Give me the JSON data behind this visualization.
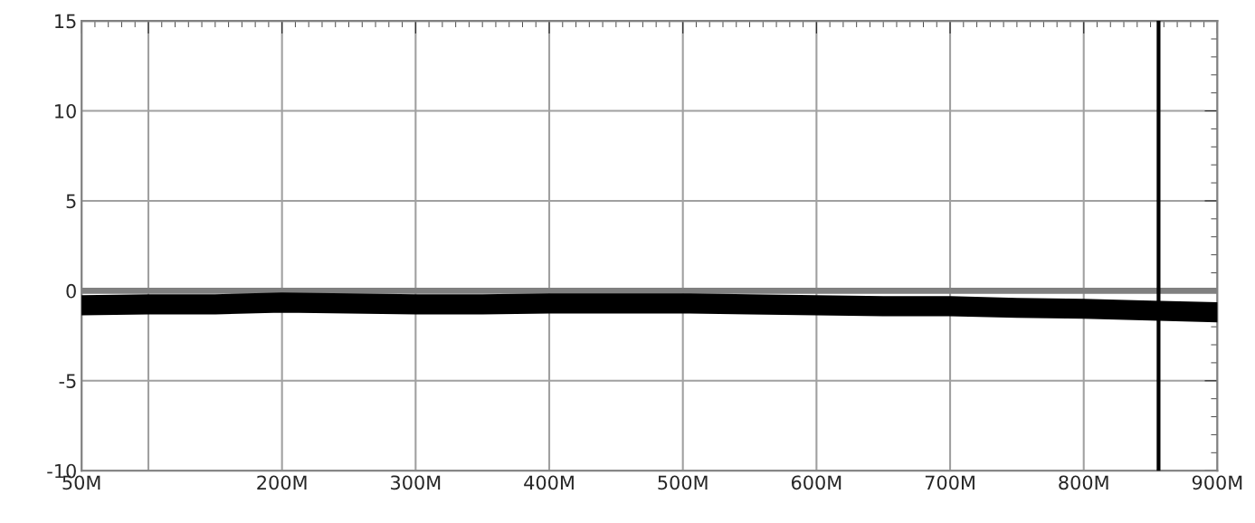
{
  "chart_data": {
    "type": "line",
    "x": [
      50,
      100,
      150,
      200,
      250,
      300,
      350,
      400,
      450,
      500,
      550,
      600,
      650,
      700,
      750,
      800,
      850,
      900
    ],
    "series": [
      {
        "color": "#000000",
        "values": [
          -0.8,
          -0.75,
          -0.75,
          -0.65,
          -0.7,
          -0.75,
          -0.75,
          -0.7,
          -0.7,
          -0.7,
          -0.75,
          -0.8,
          -0.85,
          -0.85,
          -0.95,
          -1.0,
          -1.1,
          -1.2
        ]
      }
    ],
    "xlim": [
      50,
      900
    ],
    "xticks": [
      {
        "value": 50,
        "label": "50M"
      },
      {
        "value": 100,
        "label": null
      },
      {
        "value": 200,
        "label": "200M"
      },
      {
        "value": 300,
        "label": "300M"
      },
      {
        "value": 400,
        "label": "400M"
      },
      {
        "value": 500,
        "label": "500M"
      },
      {
        "value": 600,
        "label": "600M"
      },
      {
        "value": 700,
        "label": "700M"
      },
      {
        "value": 800,
        "label": "800M"
      },
      {
        "value": 900,
        "label": "900M"
      }
    ],
    "ylim": [
      -10,
      15
    ],
    "yticks": [
      15,
      10,
      5,
      0,
      -5,
      -10
    ],
    "grid": true,
    "ref_lines": [
      {
        "axis": "y",
        "value": 0,
        "label": null,
        "color": "#808080"
      },
      {
        "axis": "x",
        "value": 856,
        "label": null,
        "color": "#000000"
      }
    ]
  }
}
